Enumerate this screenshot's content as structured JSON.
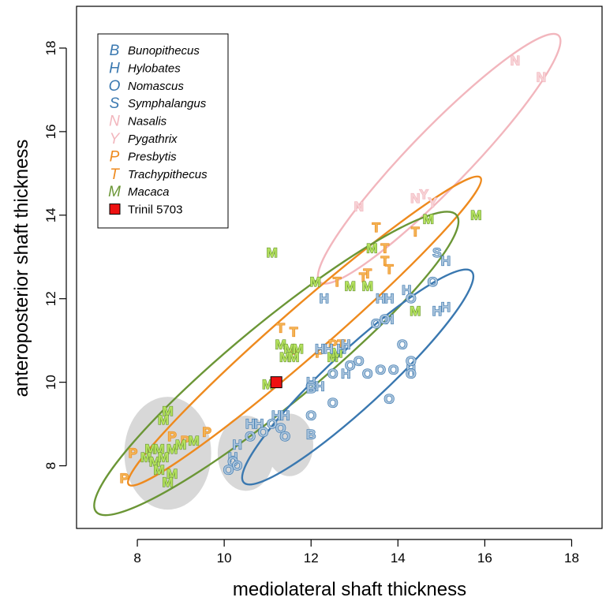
{
  "chart_data": {
    "type": "scatter",
    "title": "",
    "xlabel": "mediolateral shaft thickness",
    "ylabel": "anteroposterior shaft thickness",
    "xlim": [
      6.6,
      18.7
    ],
    "ylim": [
      6.5,
      19.0
    ],
    "xticks": [
      8,
      10,
      12,
      14,
      16,
      18
    ],
    "yticks": [
      8,
      10,
      12,
      14,
      16,
      18
    ],
    "legend_position": "top-left",
    "colors": {
      "gibbon": "#3a78b0",
      "gibbon_fill": "#a9c3db",
      "colobine_pink": "#f2b6bd",
      "colobine_pink_fill": "#f7d2d6",
      "colobine_orange": "#ee8a1e",
      "colobine_orange_fill": "#f2b455",
      "macaca": "#6b9636",
      "macaca_fill": "#b5e35e",
      "trinil": "#ee1111",
      "shade": "#d8d8d8"
    },
    "legend": [
      {
        "symbol": "B",
        "name": "Bunopithecus",
        "group": "gibbon"
      },
      {
        "symbol": "H",
        "name": "Hylobates",
        "group": "gibbon"
      },
      {
        "symbol": "O",
        "name": "Nomascus",
        "group": "gibbon"
      },
      {
        "symbol": "S",
        "name": "Symphalangus",
        "group": "gibbon"
      },
      {
        "symbol": "N",
        "name": "Nasalis",
        "group": "colobine_pink"
      },
      {
        "symbol": "Y",
        "name": "Pygathrix",
        "group": "colobine_pink"
      },
      {
        "symbol": "P",
        "name": "Presbytis",
        "group": "colobine_orange"
      },
      {
        "symbol": "T",
        "name": "Trachypithecus",
        "group": "colobine_orange"
      },
      {
        "symbol": "M",
        "name": "Macaca",
        "group": "macaca"
      },
      {
        "symbol": "square",
        "name": "Trinil 5703",
        "group": "trinil"
      }
    ],
    "shaded_regions": [
      {
        "cx": 8.7,
        "cy": 8.3,
        "rx": 1.0,
        "ry": 1.35
      },
      {
        "cx": 10.5,
        "cy": 8.3,
        "rx": 0.65,
        "ry": 0.9
      },
      {
        "cx": 11.5,
        "cy": 8.5,
        "rx": 0.55,
        "ry": 0.75
      }
    ],
    "ellipses": [
      {
        "group": "colobine_pink",
        "x1": 12.2,
        "y1": 12.4,
        "x2": 17.7,
        "y2": 18.3,
        "half_width": 0.68
      },
      {
        "group": "colobine_orange",
        "x1": 7.8,
        "y1": 7.55,
        "x2": 15.9,
        "y2": 14.9,
        "half_width": 0.55
      },
      {
        "group": "macaca",
        "x1": 7.05,
        "y1": 6.9,
        "x2": 15.35,
        "y2": 14.0,
        "half_width": 0.95
      },
      {
        "group": "gibbon",
        "x1": 10.45,
        "y1": 7.6,
        "x2": 15.7,
        "y2": 12.65,
        "half_width": 0.65
      }
    ],
    "series": [
      {
        "name": "Nasalis",
        "symbol": "N",
        "group": "colobine_pink",
        "points": [
          [
            16.7,
            17.7
          ],
          [
            17.3,
            17.3
          ],
          [
            13.1,
            14.2
          ],
          [
            14.4,
            14.4
          ]
        ]
      },
      {
        "name": "Pygathrix",
        "symbol": "Y",
        "group": "colobine_pink",
        "points": [
          [
            14.6,
            14.5
          ],
          [
            14.8,
            14.3
          ]
        ]
      },
      {
        "name": "Trachypithecus",
        "symbol": "T",
        "group": "colobine_orange",
        "points": [
          [
            13.5,
            13.7
          ],
          [
            13.7,
            13.2
          ],
          [
            13.7,
            12.9
          ],
          [
            14.4,
            13.6
          ],
          [
            12.6,
            12.4
          ],
          [
            13.2,
            12.5
          ],
          [
            13.3,
            12.6
          ],
          [
            13.8,
            12.7
          ],
          [
            11.3,
            11.3
          ],
          [
            11.6,
            11.2
          ],
          [
            12.7,
            10.9
          ]
        ]
      },
      {
        "name": "Presbytis",
        "symbol": "P",
        "group": "colobine_orange",
        "points": [
          [
            7.7,
            7.7
          ],
          [
            7.9,
            8.3
          ],
          [
            8.8,
            8.7
          ],
          [
            9.6,
            8.8
          ],
          [
            9.1,
            8.6
          ],
          [
            11.6,
            10.7
          ],
          [
            12.2,
            10.7
          ],
          [
            12.5,
            10.9
          ]
        ]
      },
      {
        "name": "Macaca",
        "symbol": "M",
        "group": "macaca",
        "points": [
          [
            11.1,
            13.1
          ],
          [
            15.8,
            14.0
          ],
          [
            14.7,
            13.9
          ],
          [
            13.4,
            13.2
          ],
          [
            12.1,
            12.4
          ],
          [
            12.9,
            12.3
          ],
          [
            13.3,
            12.3
          ],
          [
            14.4,
            11.7
          ],
          [
            11.3,
            10.9
          ],
          [
            11.5,
            10.8
          ],
          [
            11.7,
            10.8
          ],
          [
            11.4,
            10.6
          ],
          [
            11.6,
            10.6
          ],
          [
            12.5,
            10.6
          ],
          [
            12.6,
            10.7
          ],
          [
            11.0,
            9.95
          ],
          [
            8.7,
            9.3
          ],
          [
            8.6,
            9.1
          ],
          [
            8.3,
            8.4
          ],
          [
            8.5,
            8.4
          ],
          [
            8.8,
            8.4
          ],
          [
            9.0,
            8.5
          ],
          [
            9.3,
            8.6
          ],
          [
            8.2,
            8.2
          ],
          [
            8.4,
            8.1
          ],
          [
            8.6,
            8.2
          ],
          [
            8.5,
            7.9
          ],
          [
            8.8,
            7.8
          ],
          [
            8.7,
            7.6
          ]
        ]
      },
      {
        "name": "Hylobates",
        "symbol": "H",
        "group": "gibbon",
        "points": [
          [
            15.1,
            12.9
          ],
          [
            12.3,
            12.0
          ],
          [
            13.6,
            12.0
          ],
          [
            13.8,
            12.0
          ],
          [
            14.2,
            12.2
          ],
          [
            14.9,
            11.7
          ],
          [
            15.1,
            11.8
          ],
          [
            13.8,
            11.5
          ],
          [
            12.2,
            10.8
          ],
          [
            12.4,
            10.8
          ],
          [
            12.7,
            10.8
          ],
          [
            12.8,
            10.9
          ],
          [
            12.8,
            10.2
          ],
          [
            12.0,
            10.0
          ],
          [
            12.2,
            9.9
          ],
          [
            11.2,
            9.2
          ],
          [
            11.4,
            9.2
          ],
          [
            10.6,
            9.0
          ],
          [
            10.8,
            9.0
          ],
          [
            10.3,
            8.5
          ],
          [
            10.2,
            8.2
          ],
          [
            14.3,
            10.3
          ]
        ]
      },
      {
        "name": "Nomascus",
        "symbol": "O",
        "group": "gibbon",
        "points": [
          [
            14.8,
            12.4
          ],
          [
            14.3,
            12.0
          ],
          [
            13.5,
            11.4
          ],
          [
            13.7,
            11.5
          ],
          [
            14.1,
            10.9
          ],
          [
            14.3,
            10.5
          ],
          [
            14.3,
            10.2
          ],
          [
            13.6,
            10.3
          ],
          [
            13.3,
            10.2
          ],
          [
            13.9,
            10.3
          ],
          [
            13.1,
            10.5
          ],
          [
            12.9,
            10.4
          ],
          [
            12.5,
            10.2
          ],
          [
            12.0,
            9.9
          ],
          [
            12.0,
            9.2
          ],
          [
            12.5,
            9.5
          ],
          [
            13.8,
            9.6
          ],
          [
            11.1,
            9.0
          ],
          [
            11.3,
            8.9
          ],
          [
            10.9,
            8.8
          ],
          [
            11.4,
            8.7
          ],
          [
            10.6,
            8.7
          ],
          [
            10.2,
            8.1
          ],
          [
            10.3,
            8.0
          ],
          [
            10.1,
            7.9
          ]
        ]
      },
      {
        "name": "Symphalangus",
        "symbol": "S",
        "group": "gibbon",
        "points": [
          [
            14.9,
            13.1
          ]
        ]
      },
      {
        "name": "Bunopithecus",
        "symbol": "B",
        "group": "gibbon",
        "points": [
          [
            12.0,
            9.85
          ],
          [
            12.0,
            8.75
          ]
        ]
      }
    ],
    "trinil": {
      "name": "Trinil 5703",
      "x": 11.2,
      "y": 10.0
    }
  }
}
